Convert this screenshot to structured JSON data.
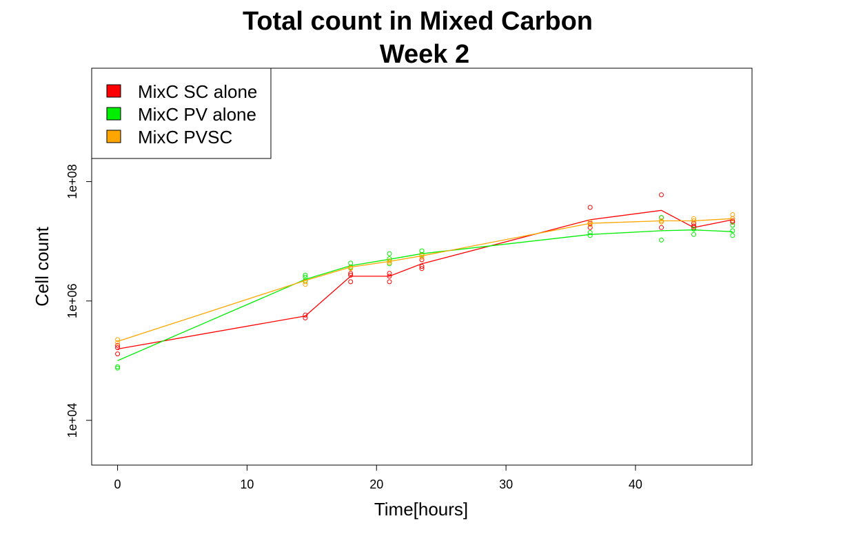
{
  "chart_data": {
    "type": "line",
    "title": "Total count in Mixed Carbon",
    "subtitle": "Week 2",
    "xlabel": "Time[hours]",
    "ylabel": "Cell count",
    "xlim": [
      -2,
      49
    ],
    "ylim_log10": [
      3.25,
      9.9
    ],
    "y_scale": "log",
    "x_ticks": [
      0,
      10,
      20,
      30,
      40
    ],
    "x_tick_labels": [
      "0",
      "10",
      "20",
      "30",
      "40"
    ],
    "y_ticks_log10": [
      4,
      6,
      8
    ],
    "y_tick_labels": [
      "1e+04",
      "1e+06",
      "1e+08"
    ],
    "legend_position": "top-left",
    "series": [
      {
        "name": "MixC SC alone",
        "color": "#ff0000",
        "mean_x": [
          0,
          14.5,
          18,
          21,
          23.5,
          36.5,
          42,
          44.5,
          47.5
        ],
        "mean_y": [
          157000,
          560000,
          2600000,
          2600000,
          4200000,
          23000000,
          33000000,
          17000000,
          23000000
        ],
        "points": [
          [
            0,
            180000
          ],
          [
            0,
            165000
          ],
          [
            0,
            130000
          ],
          [
            14.5,
            580000
          ],
          [
            14.5,
            520000
          ],
          [
            18,
            2900000
          ],
          [
            18,
            2700000
          ],
          [
            18,
            2100000
          ],
          [
            21,
            2900000
          ],
          [
            21,
            2600000
          ],
          [
            21,
            2100000
          ],
          [
            23.5,
            4900000
          ],
          [
            23.5,
            3800000
          ],
          [
            23.5,
            3500000
          ],
          [
            36.5,
            37000000
          ],
          [
            36.5,
            20000000
          ],
          [
            36.5,
            17000000
          ],
          [
            42,
            60000000
          ],
          [
            42,
            25000000
          ],
          [
            42,
            17000000
          ],
          [
            44.5,
            20000000
          ],
          [
            44.5,
            18000000
          ],
          [
            44.5,
            17000000
          ],
          [
            47.5,
            24000000
          ],
          [
            47.5,
            22000000
          ],
          [
            47.5,
            21000000
          ]
        ]
      },
      {
        "name": "MixC PV alone",
        "color": "#00ee00",
        "mean_x": [
          0,
          14.5,
          18,
          21,
          23.5,
          36.5,
          42,
          44.5,
          47.5
        ],
        "mean_y": [
          100000,
          2300000,
          3900000,
          5000000,
          6200000,
          13000000,
          15000000,
          15500000,
          14500000
        ],
        "points": [
          [
            0,
            79000
          ],
          [
            0,
            75000
          ],
          [
            14.5,
            2700000
          ],
          [
            14.5,
            2500000
          ],
          [
            14.5,
            2200000
          ],
          [
            18,
            4300000
          ],
          [
            18,
            3700000
          ],
          [
            21,
            6200000
          ],
          [
            21,
            5100000
          ],
          [
            21,
            4200000
          ],
          [
            23.5,
            6900000
          ],
          [
            23.5,
            6000000
          ],
          [
            36.5,
            14000000
          ],
          [
            36.5,
            12500000
          ],
          [
            42,
            25000000
          ],
          [
            42,
            10500000
          ],
          [
            44.5,
            13000000
          ],
          [
            44.5,
            16000000
          ],
          [
            47.5,
            18500000
          ],
          [
            47.5,
            15000000
          ],
          [
            47.5,
            12500000
          ]
        ]
      },
      {
        "name": "MixC PVSC",
        "color": "#ffa500",
        "mean_x": [
          0,
          14.5,
          18,
          21,
          23.5,
          36.5,
          42,
          44.5,
          47.5
        ],
        "mean_y": [
          210000,
          2200000,
          3700000,
          4600000,
          5700000,
          20000000,
          22000000,
          22000000,
          24000000
        ],
        "points": [
          [
            0,
            225000
          ],
          [
            0,
            200000
          ],
          [
            14.5,
            2100000
          ],
          [
            14.5,
            1900000
          ],
          [
            18,
            3600000
          ],
          [
            18,
            3500000
          ],
          [
            21,
            4700000
          ],
          [
            21,
            4400000
          ],
          [
            23.5,
            5800000
          ],
          [
            23.5,
            5400000
          ],
          [
            36.5,
            21000000
          ],
          [
            36.5,
            19000000
          ],
          [
            42,
            22000000
          ],
          [
            42,
            21000000
          ],
          [
            44.5,
            24000000
          ],
          [
            44.5,
            22000000
          ],
          [
            47.5,
            28000000
          ],
          [
            47.5,
            24000000
          ]
        ]
      }
    ]
  }
}
